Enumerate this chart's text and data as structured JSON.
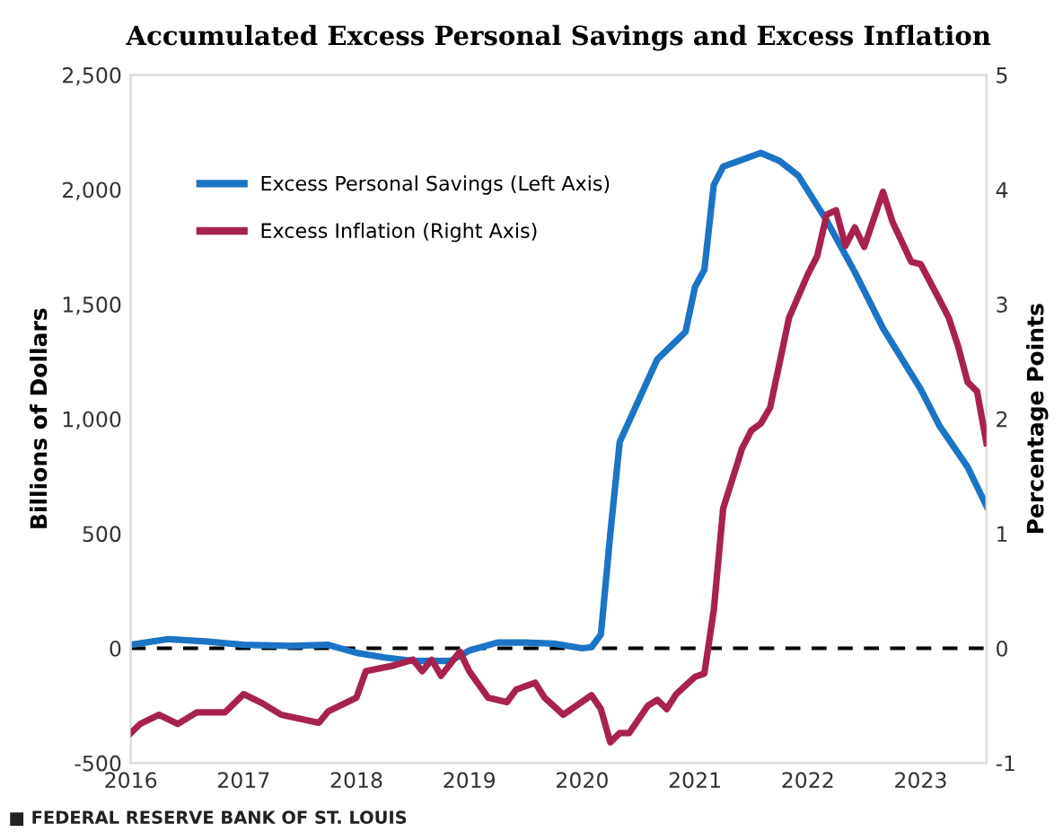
{
  "chart_data": {
    "type": "line",
    "title": "Accumulated Excess Personal Savings and Excess Inflation",
    "ylabel": "Billions of Dollars",
    "y2label": "Percentage Points",
    "annotations": [
      "■ FEDERAL RESERVE BANK OF ST. LOUIS"
    ],
    "series": [
      {
        "name": "Excess Personal Savings (Left Axis)",
        "color": "#1b74c5",
        "x": [
          "2016-01",
          "2016-05",
          "2016-09",
          "2017-01",
          "2017-06",
          "2017-10",
          "2018-01",
          "2018-04",
          "2018-07",
          "2018-11",
          "2019-01",
          "2019-04",
          "2019-07",
          "2019-10",
          "2020-01",
          "2020-02",
          "2020-03",
          "2020-04",
          "2020-05",
          "2020-07",
          "2020-09",
          "2020-12",
          "2021-01",
          "2021-02",
          "2021-03",
          "2021-04",
          "2021-06",
          "2021-08",
          "2021-10",
          "2021-12",
          "2022-03",
          "2022-06",
          "2022-09",
          "2023-01",
          "2023-03",
          "2023-06",
          "2023-08"
        ],
        "values": [
          15,
          40,
          30,
          15,
          10,
          15,
          -20,
          -40,
          -55,
          -55,
          -10,
          25,
          25,
          20,
          0,
          5,
          60,
          500,
          900,
          1080,
          1260,
          1380,
          1575,
          1650,
          2020,
          2100,
          2130,
          2160,
          2125,
          2060,
          1865,
          1640,
          1395,
          1130,
          970,
          790,
          620
        ]
      },
      {
        "name": "Excess Inflation (Right Axis)",
        "color": "#a8224f",
        "axis": "y2",
        "x": [
          "2016-01",
          "2016-02",
          "2016-04",
          "2016-06",
          "2016-08",
          "2016-11",
          "2017-01",
          "2017-03",
          "2017-05",
          "2017-09",
          "2017-10",
          "2018-01",
          "2018-02",
          "2018-05",
          "2018-07",
          "2018-08",
          "2018-09",
          "2018-10",
          "2018-12",
          "2019-01",
          "2019-03",
          "2019-05",
          "2019-06",
          "2019-08",
          "2019-09",
          "2019-11",
          "2020-02",
          "2020-03",
          "2020-04",
          "2020-05",
          "2020-06",
          "2020-08",
          "2020-09",
          "2020-10",
          "2020-11",
          "2021-01",
          "2021-02",
          "2021-03",
          "2021-04",
          "2021-06",
          "2021-07",
          "2021-08",
          "2021-09",
          "2021-11",
          "2022-01",
          "2022-02",
          "2022-03",
          "2022-04",
          "2022-05",
          "2022-06",
          "2022-07",
          "2022-09",
          "2022-10",
          "2022-12",
          "2023-01",
          "2023-03",
          "2023-04",
          "2023-05",
          "2023-06",
          "2023-07",
          "2023-08"
        ],
        "values": [
          -0.74,
          -0.66,
          -0.58,
          -0.66,
          -0.56,
          -0.56,
          -0.4,
          -0.48,
          -0.58,
          -0.65,
          -0.55,
          -0.43,
          -0.2,
          -0.15,
          -0.1,
          -0.2,
          -0.1,
          -0.24,
          -0.03,
          -0.2,
          -0.43,
          -0.47,
          -0.36,
          -0.3,
          -0.43,
          -0.58,
          -0.41,
          -0.53,
          -0.82,
          -0.74,
          -0.74,
          -0.5,
          -0.45,
          -0.53,
          -0.4,
          -0.25,
          -0.22,
          0.33,
          1.22,
          1.74,
          1.9,
          1.96,
          2.1,
          2.88,
          3.26,
          3.42,
          3.78,
          3.82,
          3.51,
          3.67,
          3.5,
          3.98,
          3.72,
          3.37,
          3.35,
          3.04,
          2.88,
          2.63,
          2.32,
          2.24,
          1.79
        ]
      }
    ],
    "xlim": [
      "2016-01",
      "2023-08"
    ],
    "xticks": [
      {
        "value": "2016-01",
        "label": "2016"
      },
      {
        "value": "2017-01",
        "label": "2017"
      },
      {
        "value": "2018-01",
        "label": "2018"
      },
      {
        "value": "2019-01",
        "label": "2019"
      },
      {
        "value": "2020-01",
        "label": "2020"
      },
      {
        "value": "2021-01",
        "label": "2021"
      },
      {
        "value": "2022-01",
        "label": "2022"
      },
      {
        "value": "2023-01",
        "label": "2023"
      }
    ],
    "ylim": [
      -500,
      2500
    ],
    "yticks": [
      {
        "value": -500,
        "label": "-500"
      },
      {
        "value": 0,
        "label": "0"
      },
      {
        "value": 500,
        "label": "500"
      },
      {
        "value": 1000,
        "label": "1,000"
      },
      {
        "value": 1500,
        "label": "1,500"
      },
      {
        "value": 2000,
        "label": "2,000"
      },
      {
        "value": 2500,
        "label": "2,500"
      }
    ],
    "y2lim": [
      -1,
      5
    ],
    "y2ticks": [
      -1,
      0,
      1,
      2,
      3,
      4,
      5
    ],
    "ref_lines": [
      {
        "axis": "y",
        "value": 0,
        "color": "#000000",
        "line_style": "dashed"
      }
    ],
    "legend": "top left",
    "grid": false,
    "line_style": "solid",
    "marker": "none"
  }
}
